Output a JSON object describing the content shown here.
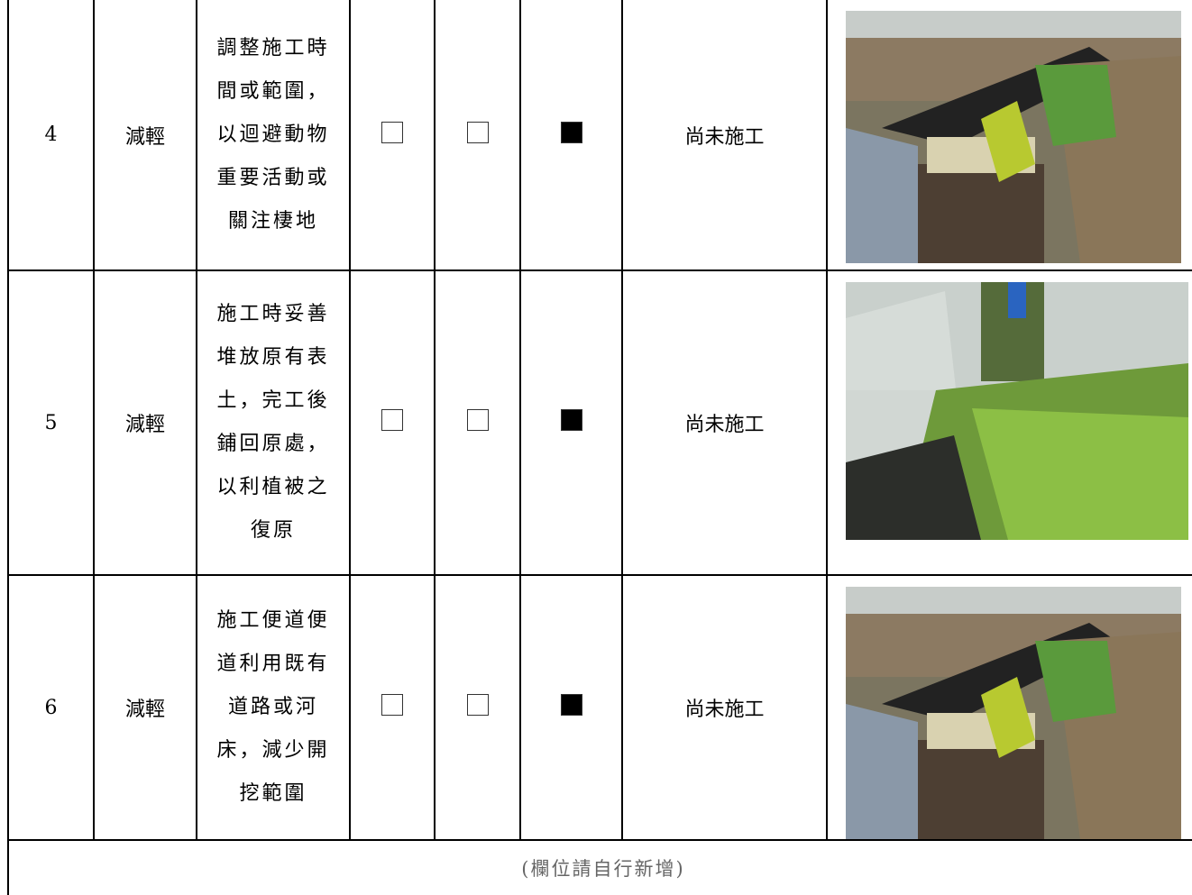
{
  "rows": [
    {
      "no": "4",
      "type": "減輕",
      "measure": "調整施工時間或範圍，以迴避動物重要活動或關注棲地",
      "checks": [
        false,
        false,
        true
      ],
      "status": "尚未施工"
    },
    {
      "no": "5",
      "type": "減輕",
      "measure": "施工時妥善堆放原有表土，完工後鋪回原處，以利植被之復原",
      "checks": [
        false,
        false,
        true
      ],
      "status": "尚未施工"
    },
    {
      "no": "6",
      "type": "減輕",
      "measure": "施工便道便道利用既有道路或河床，減少開挖範圍",
      "checks": [
        false,
        false,
        true
      ],
      "status": "尚未施工"
    }
  ],
  "footer": "(欄位請自行新增)"
}
